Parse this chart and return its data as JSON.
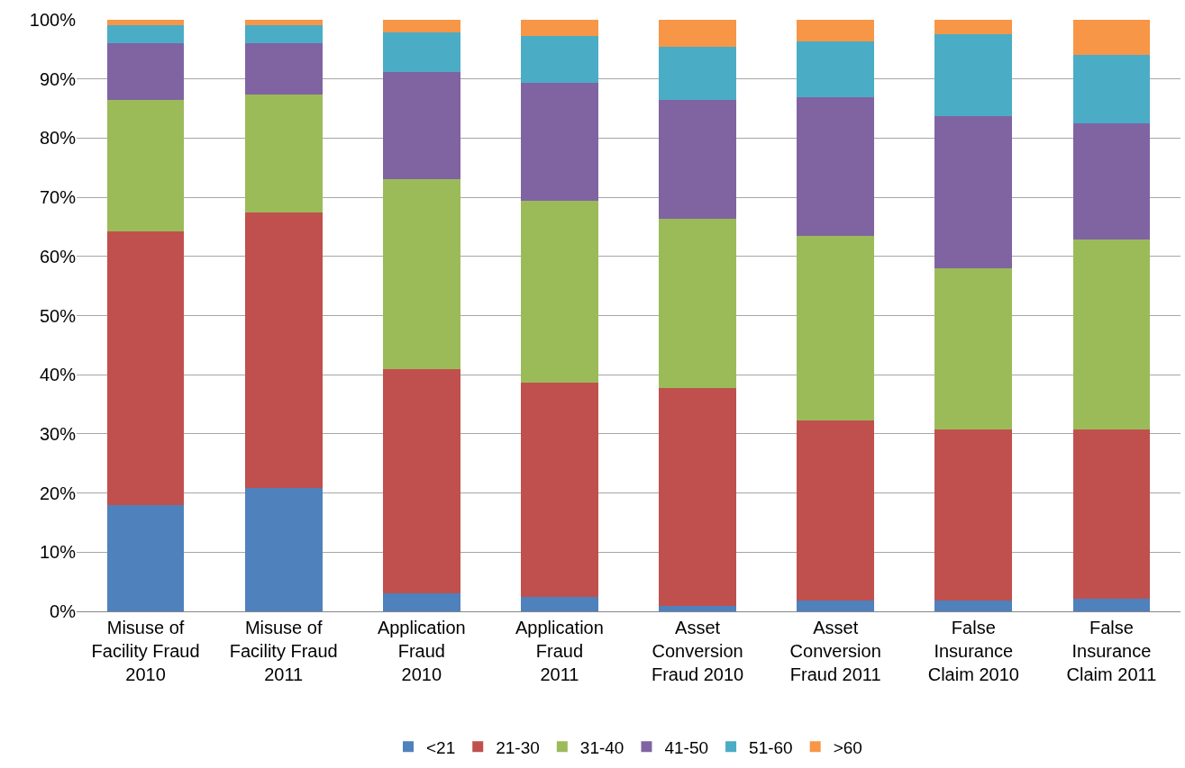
{
  "chart_data": {
    "type": "bar",
    "stacked": true,
    "categories": [
      "Misuse of\nFacility Fraud\n2010",
      "Misuse of\nFacility Fraud\n2011",
      "Application\nFraud\n2010",
      "Application\nFraud\n2011",
      "Asset\nConversion\nFraud 2010",
      "Asset\nConversion\nFraud 2011",
      "False\nInsurance\nClaim 2010",
      "False\nInsurance\nClaim 2011"
    ],
    "series": [
      {
        "name": "<21",
        "color": "#4f81bd",
        "values": [
          18.0,
          20.8,
          3.0,
          2.5,
          0.9,
          1.8,
          1.8,
          2.1
        ]
      },
      {
        "name": "21-30",
        "color": "#c0504d",
        "values": [
          46.2,
          46.7,
          37.9,
          36.1,
          36.8,
          30.4,
          28.9,
          28.6
        ]
      },
      {
        "name": "31-40",
        "color": "#9bbb59",
        "values": [
          22.3,
          19.9,
          32.1,
          30.8,
          28.6,
          31.3,
          27.3,
          32.1
        ]
      },
      {
        "name": "41-50",
        "color": "#8064a2",
        "values": [
          9.5,
          8.6,
          18.2,
          19.9,
          20.2,
          23.4,
          25.7,
          19.7
        ]
      },
      {
        "name": "51-60",
        "color": "#4bacc6",
        "values": [
          3.1,
          3.1,
          6.7,
          8.0,
          9.0,
          9.5,
          13.8,
          11.6
        ]
      },
      {
        "name": ">60",
        "color": "#f79646",
        "values": [
          0.9,
          0.9,
          2.1,
          2.7,
          4.5,
          3.6,
          2.5,
          5.9
        ]
      }
    ],
    "ylim": [
      0,
      100
    ],
    "yticks": [
      {
        "value": 0,
        "label": "0%"
      },
      {
        "value": 10,
        "label": "10%"
      },
      {
        "value": 20,
        "label": "20%"
      },
      {
        "value": 30,
        "label": "30%"
      },
      {
        "value": 40,
        "label": "40%"
      },
      {
        "value": 50,
        "label": "50%"
      },
      {
        "value": 60,
        "label": "60%"
      },
      {
        "value": 70,
        "label": "70%"
      },
      {
        "value": 80,
        "label": "80%"
      },
      {
        "value": 90,
        "label": "90%"
      },
      {
        "value": 100,
        "label": "100%"
      }
    ],
    "grid": "y",
    "legend": "bottom"
  }
}
